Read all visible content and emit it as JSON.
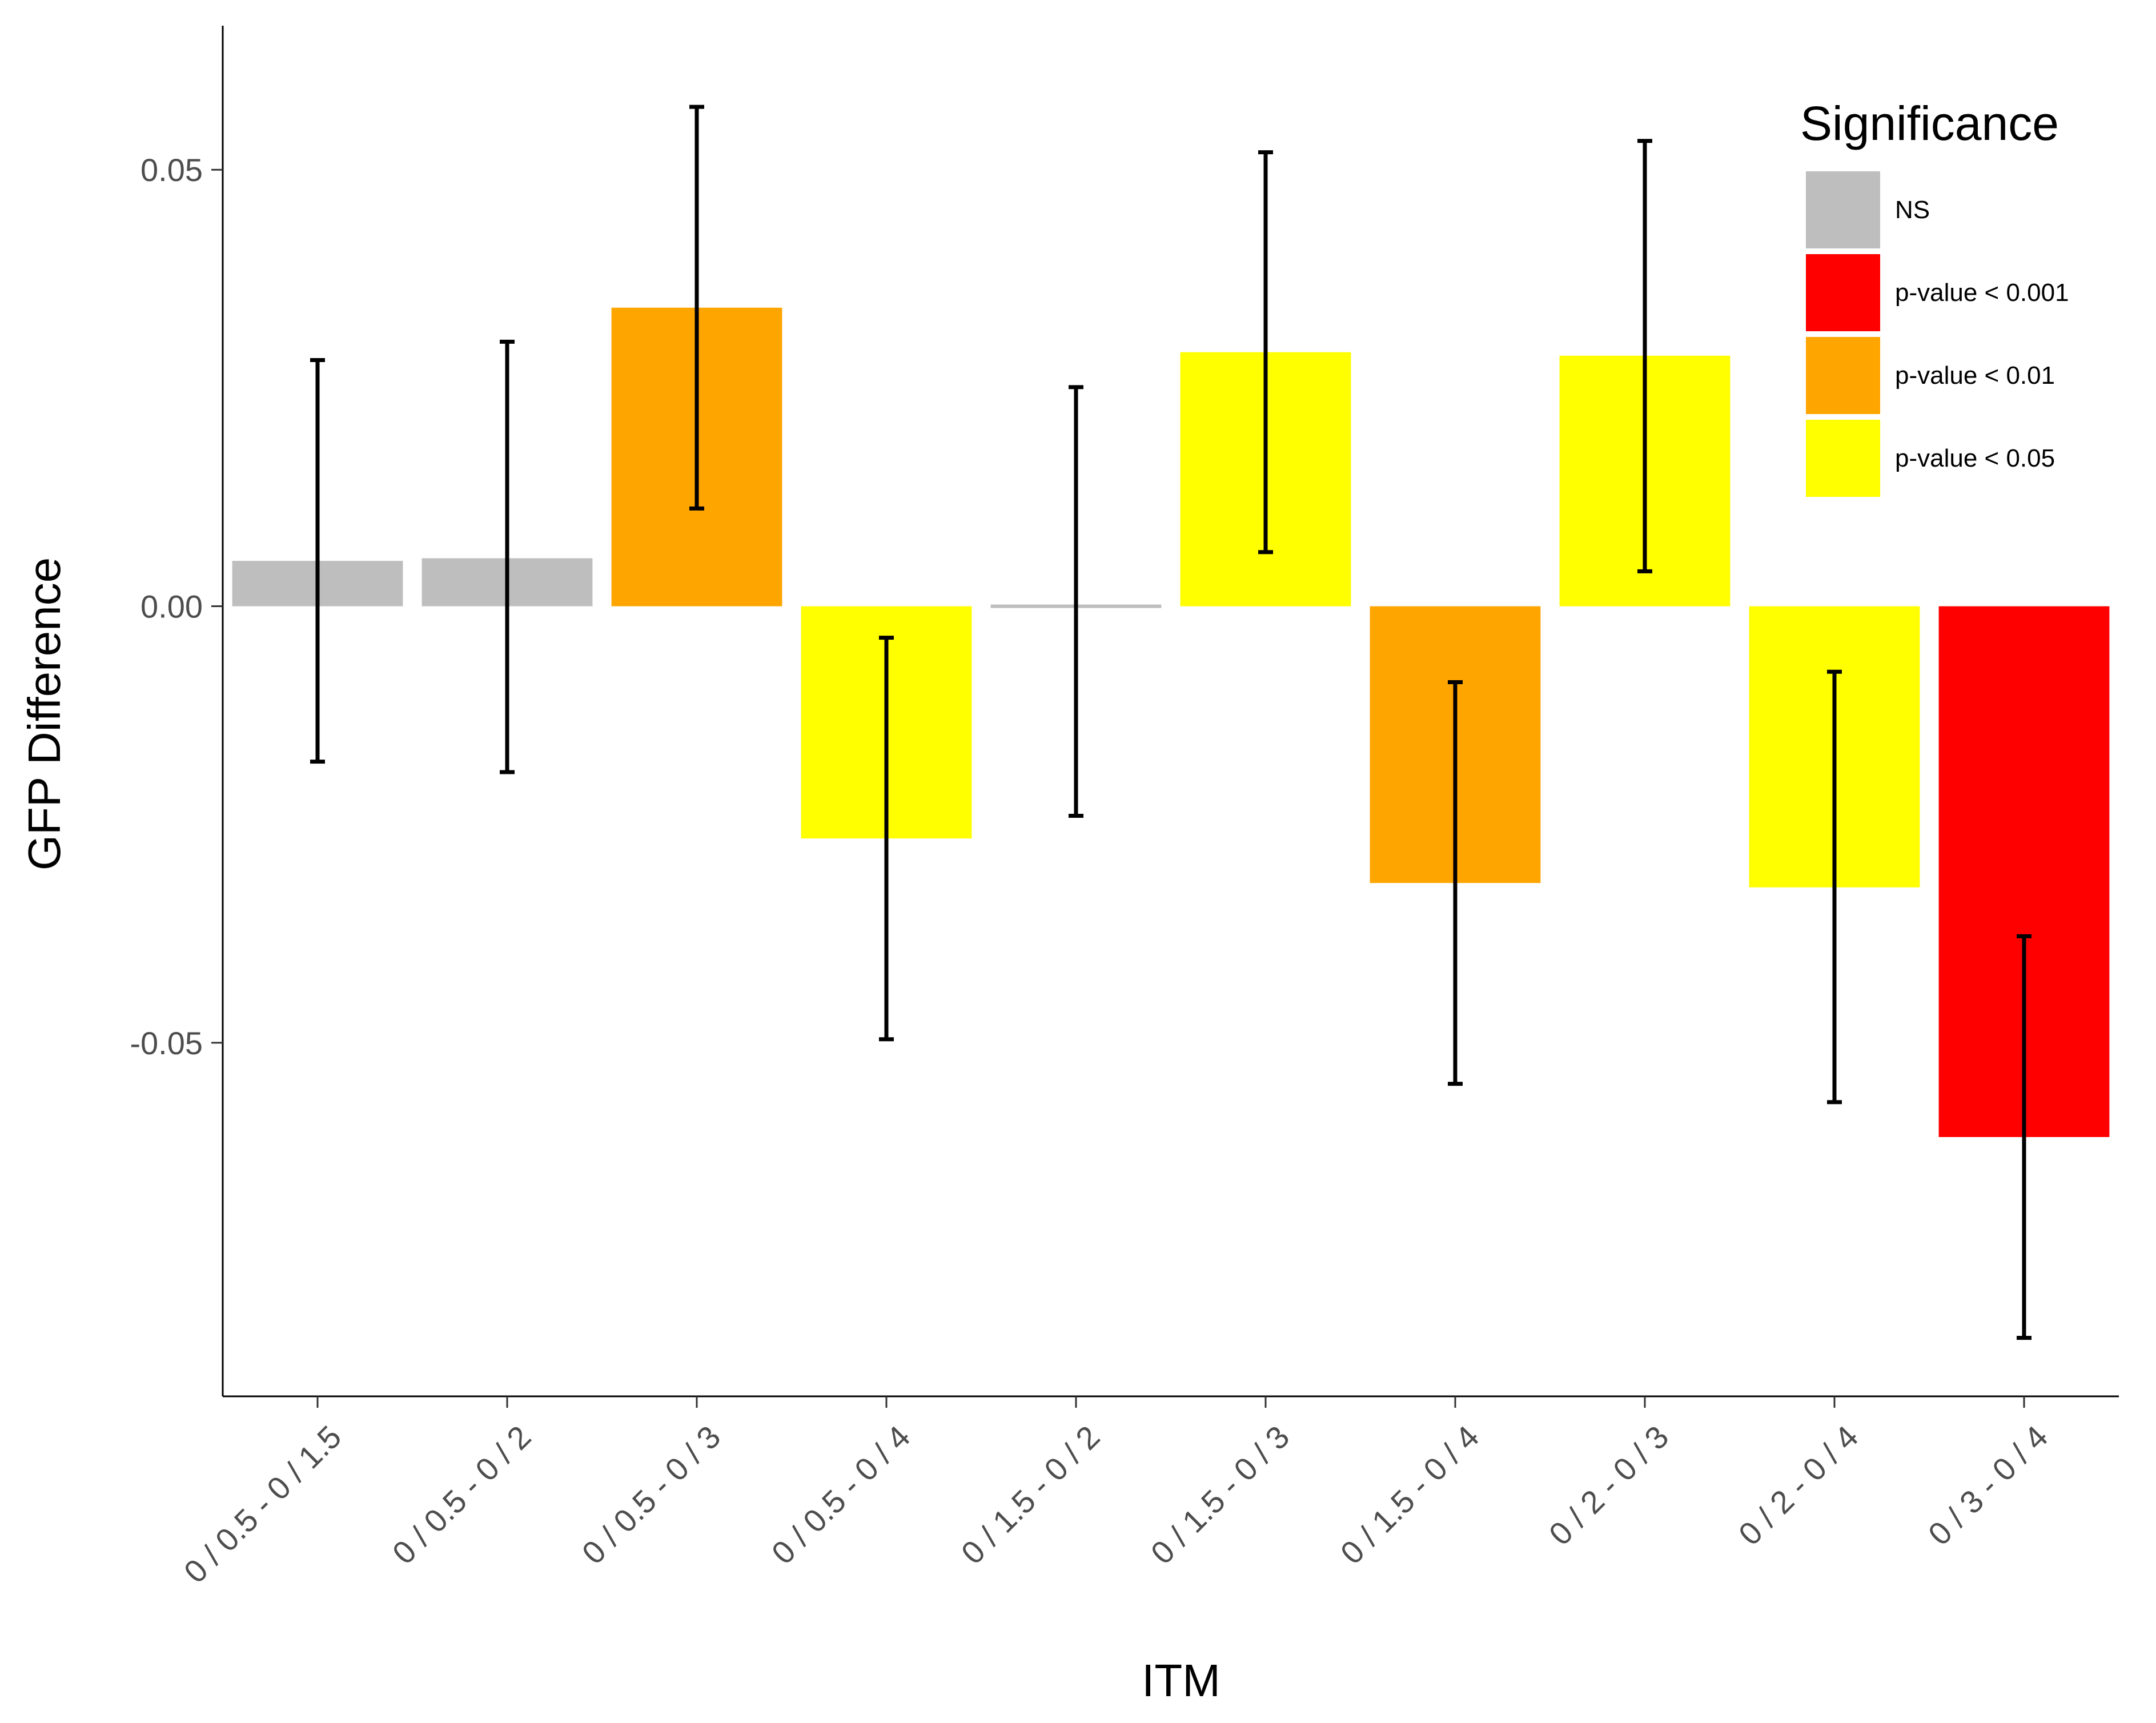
{
  "chart_data": {
    "type": "bar",
    "xlabel": "ITM",
    "ylabel": "GFP Difference",
    "ylim": [
      -0.0905,
      0.0665
    ],
    "yticks": [
      -0.05,
      0.0,
      0.05
    ],
    "ytick_labels": [
      "-0.05",
      "0.00",
      "0.05"
    ],
    "grid": false,
    "legend": {
      "title": "Significance",
      "placement": "top-right",
      "entries": [
        {
          "label": "NS",
          "color": "#BEBEBE"
        },
        {
          "label": "p-value < 0.001",
          "color": "#FF0000"
        },
        {
          "label": "p-value < 0.01",
          "color": "#FFA500"
        },
        {
          "label": "p-value < 0.05",
          "color": "#FFFF00"
        }
      ]
    },
    "categories": [
      "0 / 0.5 - 0 / 1.5",
      "0 / 0.5 - 0 / 2",
      "0 / 0.5 - 0 / 3",
      "0 / 0.5 - 0 / 4",
      "0 / 1.5 - 0 / 2",
      "0 / 1.5 - 0 / 3",
      "0 / 1.5 - 0 / 4",
      "0 / 2 - 0 / 3",
      "0 / 2 - 0 / 4",
      "0 / 3 - 0 / 4"
    ],
    "values": [
      0.0052,
      0.0055,
      0.0342,
      -0.0266,
      0.0003,
      0.0291,
      -0.0317,
      0.0287,
      -0.0322,
      -0.0608
    ],
    "error_low": [
      -0.0178,
      -0.019,
      0.0112,
      -0.0496,
      -0.024,
      0.0062,
      -0.0547,
      0.004,
      -0.0568,
      -0.0838
    ],
    "error_high": [
      0.0282,
      0.0303,
      0.0572,
      -0.0036,
      0.0251,
      0.052,
      -0.0087,
      0.0533,
      -0.0075,
      -0.0378
    ],
    "significance": [
      "NS",
      "NS",
      "p-value < 0.01",
      "p-value < 0.05",
      "NS",
      "p-value < 0.05",
      "p-value < 0.01",
      "p-value < 0.05",
      "p-value < 0.05",
      "p-value < 0.001"
    ]
  }
}
